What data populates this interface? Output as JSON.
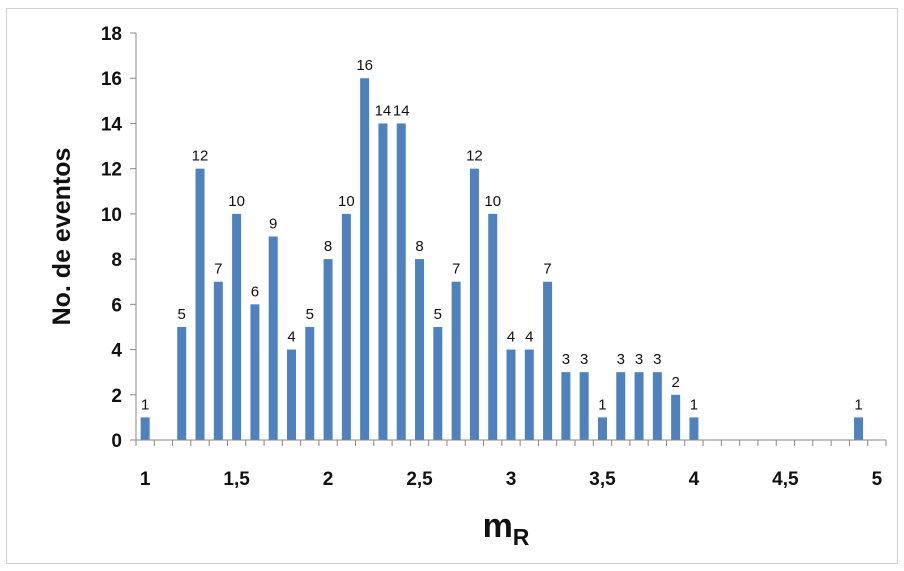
{
  "chart_data": {
    "type": "bar",
    "xlabel_main": "m",
    "xlabel_sub": "R",
    "ylabel": "No. de eventos",
    "ylim": [
      0,
      18
    ],
    "yticks": [
      "0",
      "2",
      "4",
      "6",
      "8",
      "10",
      "12",
      "14",
      "16",
      "18"
    ],
    "xlim": [
      1,
      5
    ],
    "xticks": [
      "1",
      "1,5",
      "2",
      "2,5",
      "3",
      "3,5",
      "4",
      "4,5",
      "5"
    ],
    "bar_color": "#4F81BD",
    "grid": false,
    "x": [
      1.0,
      1.2,
      1.3,
      1.4,
      1.5,
      1.6,
      1.7,
      1.8,
      1.9,
      2.0,
      2.1,
      2.2,
      2.3,
      2.4,
      2.5,
      2.6,
      2.7,
      2.8,
      2.9,
      3.0,
      3.1,
      3.2,
      3.3,
      3.4,
      3.5,
      3.6,
      3.7,
      3.8,
      3.9,
      4.0,
      4.9
    ],
    "values": [
      1,
      5,
      12,
      7,
      10,
      6,
      9,
      4,
      5,
      8,
      10,
      16,
      14,
      14,
      8,
      5,
      7,
      12,
      10,
      4,
      4,
      7,
      3,
      3,
      1,
      3,
      3,
      3,
      2,
      1,
      1
    ]
  }
}
